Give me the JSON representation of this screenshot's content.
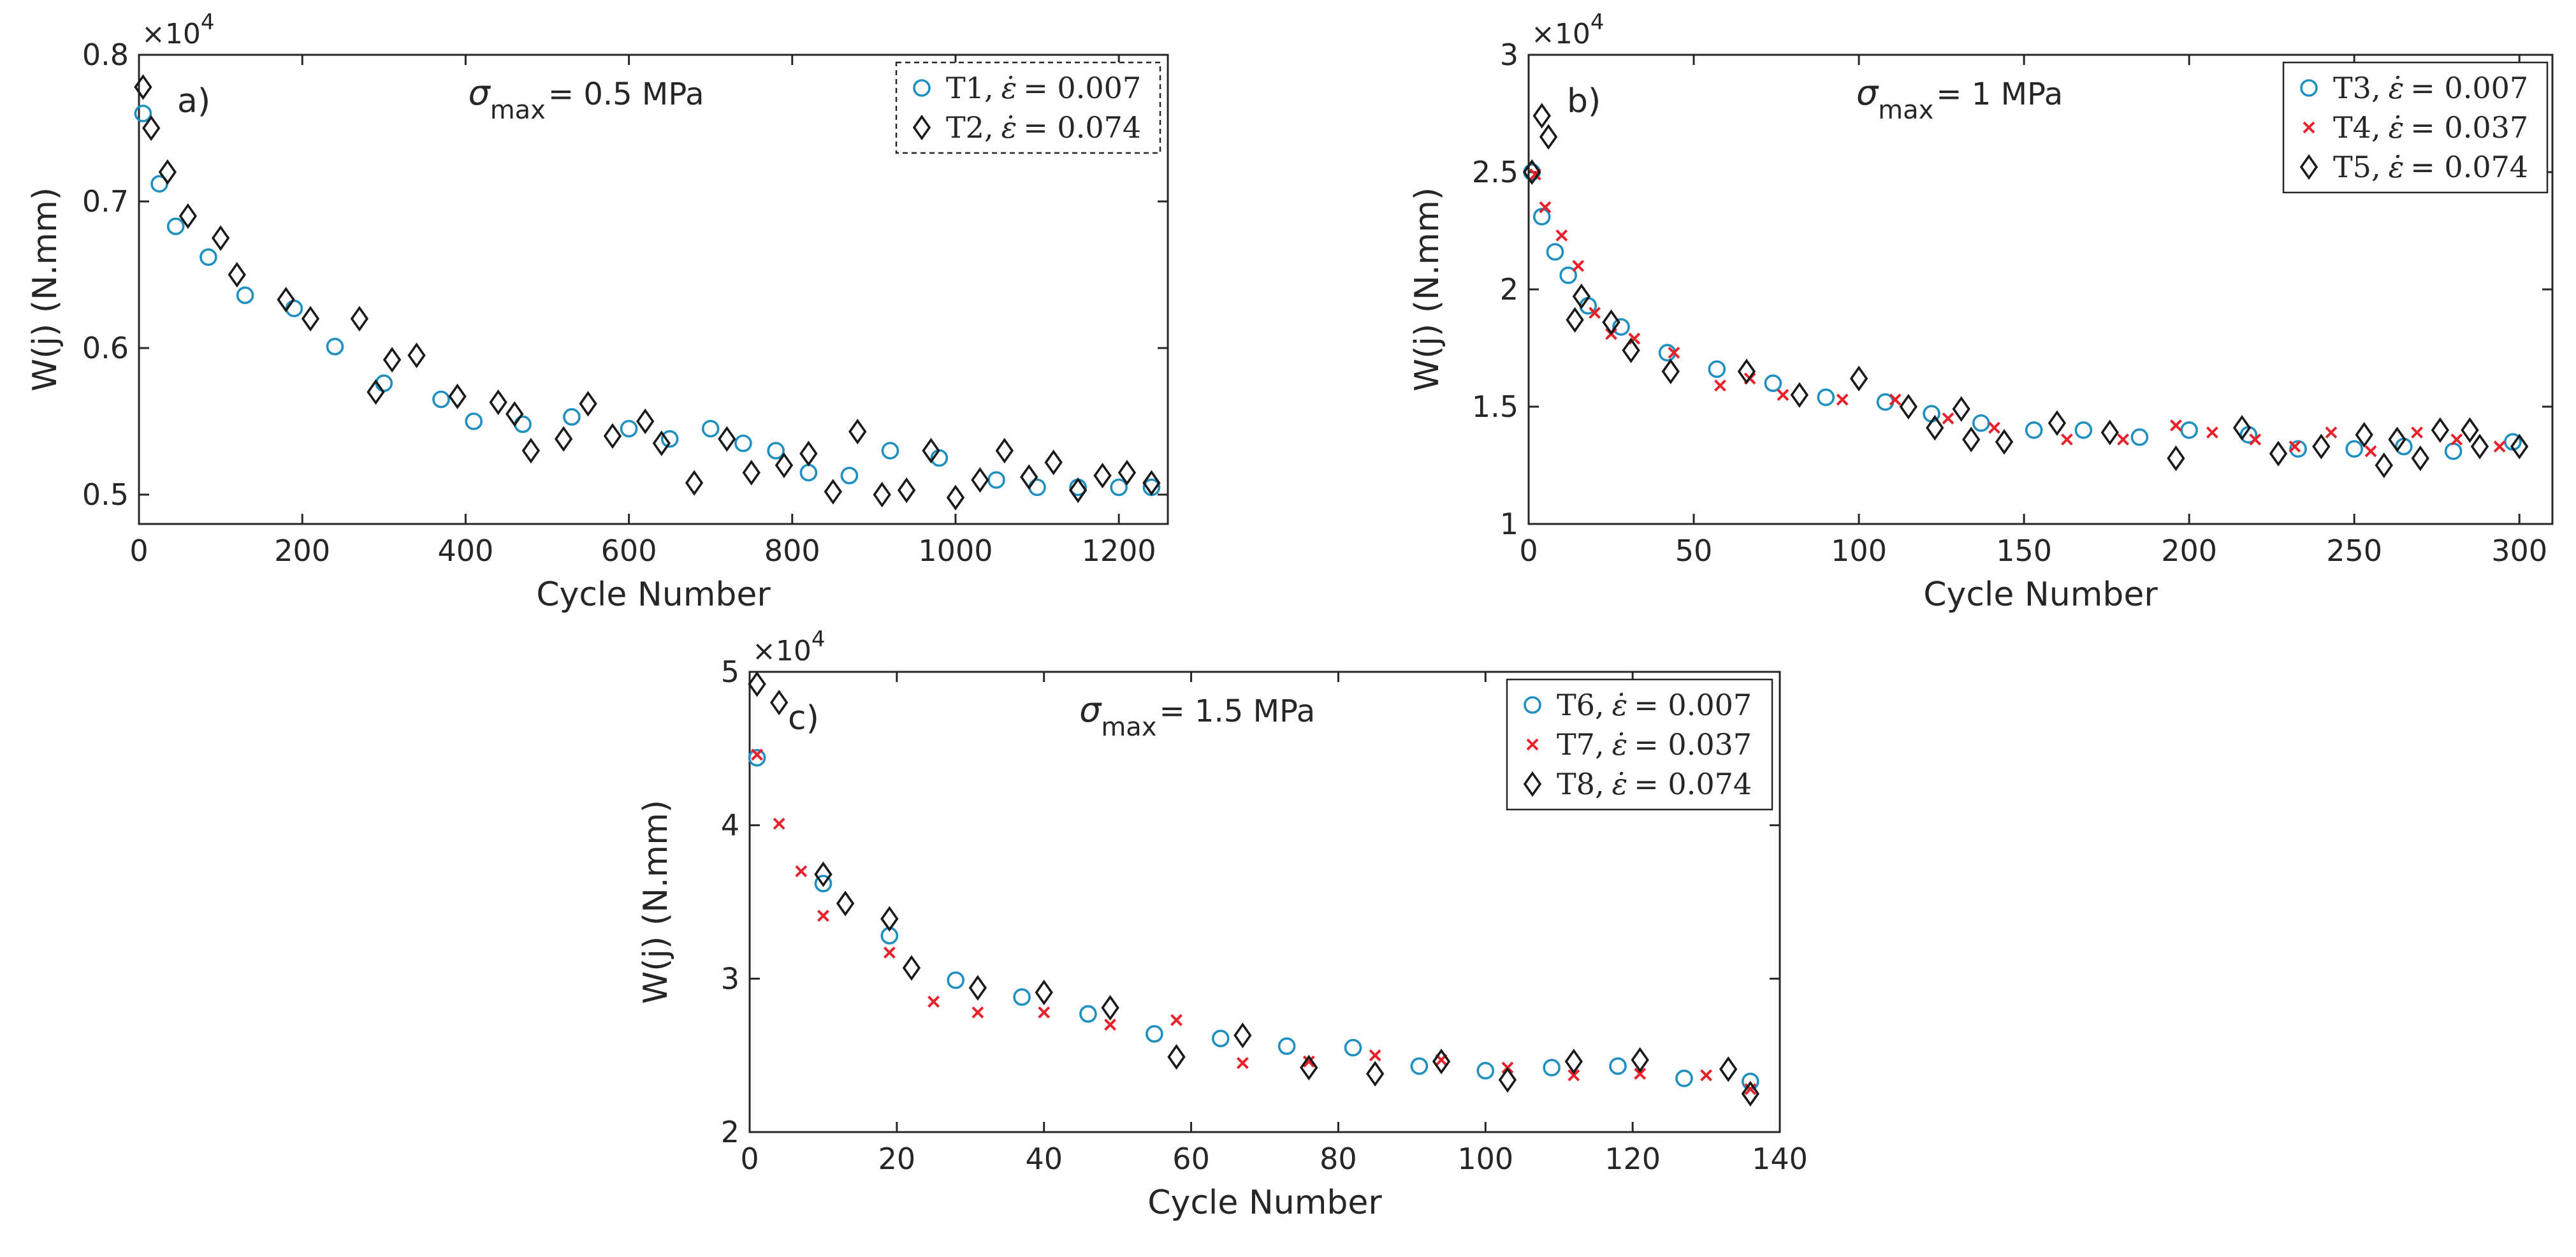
{
  "colors": {
    "circle": "#1f8fc0",
    "cross": "#e8212b",
    "diamond": "#1a1a1a",
    "axis": "#262626"
  },
  "markers": {
    "circle": "circle-marker",
    "cross": "x-marker",
    "diamond": "diamond-marker"
  },
  "chart_data": [
    {
      "type": "scatter",
      "panel_label": "a)",
      "annotation": {
        "prefix": "σ",
        "sub": "max",
        "suffix": "= 0.5 MPa"
      },
      "exponent": {
        "base": "×10",
        "power": "4"
      },
      "xlabel": "Cycle Number",
      "ylabel": "W(j) (N.mm)",
      "xlim": [
        0,
        1260
      ],
      "ylim": [
        0.48,
        0.8
      ],
      "xticks": [
        0,
        200,
        400,
        600,
        800,
        1000,
        1200
      ],
      "xtick_labels": [
        "0",
        "200",
        "400",
        "600",
        "800",
        "1000",
        "1200"
      ],
      "yticks": [
        0.5,
        0.6,
        0.7,
        0.8
      ],
      "ytick_labels": [
        "0.5",
        "0.6",
        "0.7",
        "0.8"
      ],
      "series": [
        {
          "name": "T1",
          "legend": {
            "name": "T1,",
            "rate": "= 0.007"
          },
          "marker": "circle",
          "x": [
            5,
            25,
            45,
            85,
            130,
            190,
            240,
            300,
            370,
            410,
            470,
            530,
            600,
            650,
            700,
            740,
            780,
            820,
            870,
            920,
            980,
            1050,
            1100,
            1150,
            1200,
            1240
          ],
          "y": [
            0.76,
            0.712,
            0.683,
            0.662,
            0.636,
            0.627,
            0.601,
            0.576,
            0.565,
            0.55,
            0.548,
            0.553,
            0.545,
            0.538,
            0.545,
            0.535,
            0.53,
            0.515,
            0.513,
            0.53,
            0.525,
            0.51,
            0.505,
            0.505,
            0.505,
            0.505
          ]
        },
        {
          "name": "T2",
          "legend": {
            "name": "T2,",
            "rate": "= 0.074"
          },
          "marker": "diamond",
          "x": [
            5,
            15,
            35,
            60,
            100,
            120,
            180,
            210,
            270,
            290,
            310,
            340,
            390,
            440,
            460,
            480,
            520,
            550,
            580,
            620,
            640,
            680,
            720,
            750,
            790,
            820,
            850,
            880,
            910,
            940,
            970,
            1000,
            1030,
            1060,
            1090,
            1120,
            1150,
            1180,
            1210,
            1240
          ],
          "y": [
            0.778,
            0.75,
            0.72,
            0.69,
            0.675,
            0.65,
            0.633,
            0.62,
            0.62,
            0.57,
            0.592,
            0.595,
            0.567,
            0.563,
            0.555,
            0.53,
            0.538,
            0.562,
            0.54,
            0.55,
            0.535,
            0.508,
            0.538,
            0.515,
            0.52,
            0.528,
            0.502,
            0.543,
            0.5,
            0.503,
            0.53,
            0.498,
            0.51,
            0.53,
            0.512,
            0.522,
            0.503,
            0.513,
            0.515,
            0.508
          ]
        }
      ]
    },
    {
      "type": "scatter",
      "panel_label": "b)",
      "annotation": {
        "prefix": "σ",
        "sub": "max",
        "suffix": "= 1 MPa"
      },
      "exponent": {
        "base": "×10",
        "power": "4"
      },
      "xlabel": "Cycle Number",
      "ylabel": "W(j) (N.mm)",
      "xlim": [
        0,
        310
      ],
      "ylim": [
        1.0,
        3.0
      ],
      "xticks": [
        0,
        50,
        100,
        150,
        200,
        250,
        300
      ],
      "xtick_labels": [
        "0",
        "50",
        "100",
        "150",
        "200",
        "250",
        "300"
      ],
      "yticks": [
        1,
        1.5,
        2,
        2.5,
        3
      ],
      "ytick_labels": [
        "1",
        "1.5",
        "2",
        "2.5",
        "3"
      ],
      "series": [
        {
          "name": "T3",
          "legend": {
            "name": "T3,",
            "rate": "= 0.007"
          },
          "marker": "circle",
          "x": [
            1,
            4,
            8,
            12,
            18,
            28,
            42,
            57,
            74,
            90,
            108,
            122,
            137,
            153,
            168,
            185,
            200,
            218,
            233,
            250,
            265,
            280,
            298
          ],
          "y": [
            2.5,
            2.31,
            2.16,
            2.06,
            1.93,
            1.84,
            1.73,
            1.66,
            1.6,
            1.54,
            1.52,
            1.47,
            1.43,
            1.4,
            1.4,
            1.37,
            1.4,
            1.38,
            1.32,
            1.32,
            1.33,
            1.31,
            1.35
          ]
        },
        {
          "name": "T4",
          "legend": {
            "name": "T4,",
            "rate": "= 0.037"
          },
          "marker": "cross",
          "x": [
            2,
            5,
            10,
            15,
            20,
            25,
            32,
            44,
            58,
            67,
            77,
            95,
            111,
            127,
            141,
            163,
            180,
            196,
            207,
            220,
            232,
            243,
            255,
            269,
            281,
            294
          ],
          "y": [
            2.49,
            2.35,
            2.23,
            2.1,
            1.9,
            1.81,
            1.79,
            1.73,
            1.59,
            1.62,
            1.55,
            1.53,
            1.53,
            1.45,
            1.41,
            1.36,
            1.36,
            1.42,
            1.39,
            1.36,
            1.33,
            1.39,
            1.31,
            1.39,
            1.36,
            1.33
          ]
        },
        {
          "name": "T5",
          "legend": {
            "name": "T5,",
            "rate": "= 0.074"
          },
          "marker": "diamond",
          "x": [
            1,
            4,
            6,
            14,
            16,
            25,
            31,
            43,
            66,
            82,
            100,
            115,
            123,
            131,
            134,
            144,
            160,
            176,
            196,
            216,
            227,
            240,
            253,
            259,
            263,
            270,
            276,
            285,
            288,
            300
          ],
          "y": [
            2.5,
            2.74,
            2.65,
            1.87,
            1.97,
            1.86,
            1.74,
            1.65,
            1.65,
            1.55,
            1.62,
            1.5,
            1.41,
            1.49,
            1.36,
            1.35,
            1.43,
            1.39,
            1.28,
            1.41,
            1.3,
            1.33,
            1.38,
            1.25,
            1.36,
            1.28,
            1.4,
            1.4,
            1.33,
            1.33
          ]
        }
      ]
    },
    {
      "type": "scatter",
      "panel_label": "c)",
      "annotation": {
        "prefix": "σ",
        "sub": "max",
        "suffix": "= 1.5 MPa"
      },
      "exponent": {
        "base": "×10",
        "power": "4"
      },
      "xlabel": "Cycle Number",
      "ylabel": "W(j) (N.mm)",
      "xlim": [
        0,
        140
      ],
      "ylim": [
        2.0,
        5.0
      ],
      "xticks": [
        0,
        20,
        40,
        60,
        80,
        100,
        120,
        140
      ],
      "xtick_labels": [
        "0",
        "20",
        "40",
        "60",
        "80",
        "100",
        "120",
        "140"
      ],
      "yticks": [
        2,
        3,
        4,
        5
      ],
      "ytick_labels": [
        "2",
        "3",
        "4",
        "5"
      ],
      "series": [
        {
          "name": "T6",
          "legend": {
            "name": "T6,",
            "rate": "= 0.007"
          },
          "marker": "circle",
          "x": [
            1,
            10,
            19,
            28,
            37,
            46,
            55,
            64,
            73,
            82,
            91,
            100,
            109,
            118,
            127,
            136
          ],
          "y": [
            4.44,
            3.62,
            3.28,
            2.99,
            2.88,
            2.77,
            2.64,
            2.61,
            2.56,
            2.55,
            2.43,
            2.4,
            2.42,
            2.43,
            2.35,
            2.33
          ]
        },
        {
          "name": "T7",
          "legend": {
            "name": "T7,",
            "rate": "= 0.037"
          },
          "marker": "cross",
          "x": [
            1,
            4,
            7,
            10,
            19,
            25,
            31,
            40,
            49,
            58,
            67,
            76,
            85,
            94,
            103,
            112,
            121,
            130,
            136
          ],
          "y": [
            4.46,
            4.01,
            3.7,
            3.41,
            3.17,
            2.85,
            2.78,
            2.78,
            2.7,
            2.73,
            2.45,
            2.46,
            2.5,
            2.47,
            2.42,
            2.37,
            2.38,
            2.37,
            2.28
          ]
        },
        {
          "name": "T8",
          "legend": {
            "name": "T8,",
            "rate": "= 0.074"
          },
          "marker": "diamond",
          "x": [
            1,
            4,
            10,
            13,
            19,
            22,
            31,
            40,
            49,
            58,
            67,
            76,
            85,
            94,
            103,
            112,
            121,
            133,
            136
          ],
          "y": [
            4.92,
            4.8,
            3.68,
            3.49,
            3.39,
            3.07,
            2.94,
            2.91,
            2.81,
            2.49,
            2.63,
            2.42,
            2.38,
            2.46,
            2.34,
            2.46,
            2.47,
            2.41,
            2.25
          ]
        }
      ]
    }
  ]
}
